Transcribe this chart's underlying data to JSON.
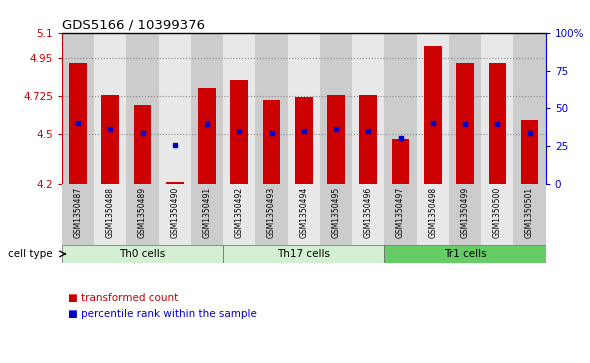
{
  "title": "GDS5166 / 10399376",
  "samples": [
    "GSM1350487",
    "GSM1350488",
    "GSM1350489",
    "GSM1350490",
    "GSM1350491",
    "GSM1350492",
    "GSM1350493",
    "GSM1350494",
    "GSM1350495",
    "GSM1350496",
    "GSM1350497",
    "GSM1350498",
    "GSM1350499",
    "GSM1350500",
    "GSM1350501"
  ],
  "bar_values": [
    4.92,
    4.73,
    4.67,
    4.21,
    4.77,
    4.82,
    4.7,
    4.72,
    4.73,
    4.73,
    4.47,
    5.02,
    4.92,
    4.92,
    4.58
  ],
  "percentile_values": [
    4.565,
    4.525,
    4.505,
    4.43,
    4.555,
    4.515,
    4.505,
    4.515,
    4.525,
    4.515,
    4.475,
    4.565,
    4.555,
    4.555,
    4.505
  ],
  "cell_types": [
    {
      "label": "Th0 cells",
      "start": 0,
      "end": 5,
      "color": "#d4f0d4"
    },
    {
      "label": "Th17 cells",
      "start": 5,
      "end": 10,
      "color": "#d4f0d4"
    },
    {
      "label": "Tr1 cells",
      "start": 10,
      "end": 15,
      "color": "#66cc66"
    }
  ],
  "bar_color": "#cc0000",
  "dot_color": "#0000cc",
  "ylim_left": [
    4.2,
    5.1
  ],
  "yticks_left": [
    4.2,
    4.5,
    4.725,
    4.95,
    5.1
  ],
  "ytick_labels_left": [
    "4.2",
    "4.5",
    "4.725",
    "4.95",
    "5.1"
  ],
  "ylim_right": [
    0,
    100
  ],
  "yticks_right": [
    0,
    25,
    50,
    75,
    100
  ],
  "ytick_labels_right": [
    "0",
    "25",
    "50",
    "75",
    "100%"
  ],
  "bar_width": 0.55,
  "grid_color": "#888888",
  "col_bg_even": "#cccccc",
  "col_bg_odd": "#e8e8e8",
  "legend_items": [
    {
      "label": "transformed count",
      "color": "#cc0000"
    },
    {
      "label": "percentile rank within the sample",
      "color": "#0000cc"
    }
  ]
}
